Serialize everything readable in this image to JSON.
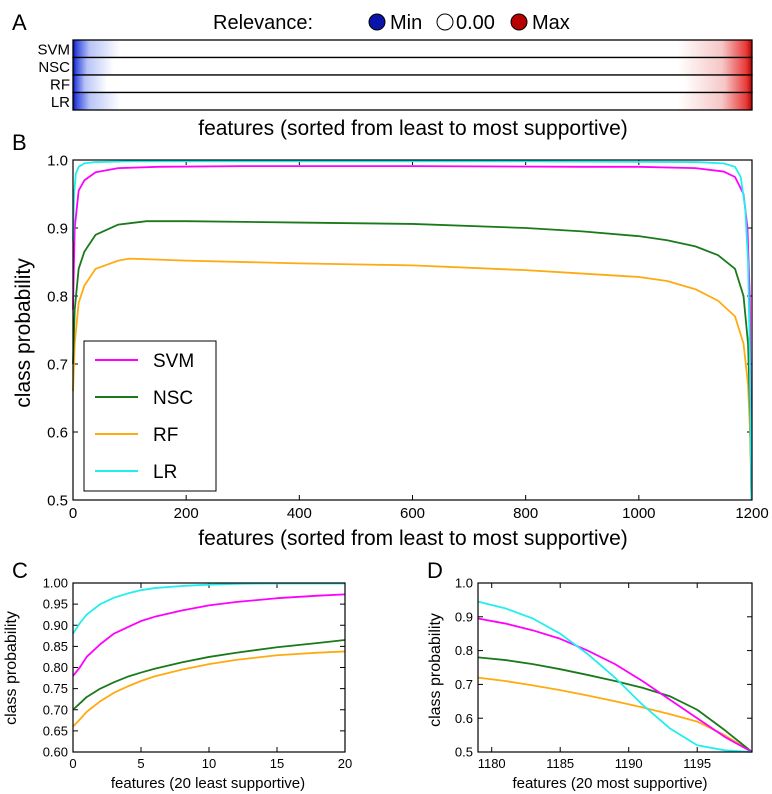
{
  "panel_labels": {
    "a": "A",
    "b": "B",
    "c": "C",
    "d": "D"
  },
  "legend_top": {
    "title": "Relevance:",
    "items": [
      {
        "label": "Min",
        "color": "#0a14a8"
      },
      {
        "label": "0.00",
        "color": "#ffffff"
      },
      {
        "label": "Max",
        "color": "#b80000"
      }
    ]
  },
  "colors": {
    "SVM": "#ff00ff",
    "NSC": "#1a7a1a",
    "RF": "#ffaa11",
    "LR": "#22eeee"
  },
  "chart_data": [
    {
      "id": "A",
      "type": "heatmap",
      "rows": [
        "SVM",
        "NSC",
        "RF",
        "LR"
      ],
      "xlabel": "features (sorted from least to most supportive)",
      "color_scale": {
        "min_label": "Min",
        "mid_label": "0.00",
        "max_label": "Max",
        "min_color": "#0a14a8",
        "mid_color": "#ffffff",
        "max_color": "#b80000"
      },
      "description_values": {
        "blue_extent_fraction": [
          0.07,
          0.06,
          0.05,
          0.07
        ],
        "red_extent_fraction": [
          0.11,
          0.11,
          0.1,
          0.11
        ]
      }
    },
    {
      "id": "B",
      "type": "line",
      "xlabel": "features (sorted from least to most supportive)",
      "ylabel": "class probability",
      "xlim": [
        0,
        1200
      ],
      "ylim": [
        0.5,
        1.0
      ],
      "xticks": [
        "0",
        "200",
        "400",
        "600",
        "800",
        "1000",
        "1200"
      ],
      "yticks": [
        "0.5",
        "0.6",
        "0.7",
        "0.8",
        "0.9",
        "1.0"
      ],
      "legend_position": "lower-left",
      "series": [
        {
          "name": "SVM",
          "x": [
            0,
            3,
            10,
            20,
            40,
            80,
            150,
            300,
            600,
            900,
            1000,
            1100,
            1150,
            1170,
            1185,
            1192,
            1196,
            1199
          ],
          "y": [
            0.78,
            0.9,
            0.955,
            0.97,
            0.982,
            0.988,
            0.99,
            0.991,
            0.991,
            0.99,
            0.99,
            0.988,
            0.983,
            0.975,
            0.95,
            0.9,
            0.8,
            0.5
          ]
        },
        {
          "name": "NSC",
          "x": [
            0,
            3,
            10,
            20,
            40,
            80,
            130,
            200,
            400,
            600,
            800,
            900,
            1000,
            1050,
            1100,
            1140,
            1170,
            1185,
            1193,
            1197,
            1199
          ],
          "y": [
            0.7,
            0.78,
            0.84,
            0.865,
            0.89,
            0.905,
            0.91,
            0.91,
            0.908,
            0.906,
            0.9,
            0.895,
            0.888,
            0.882,
            0.873,
            0.86,
            0.84,
            0.8,
            0.73,
            0.62,
            0.5
          ]
        },
        {
          "name": "RF",
          "x": [
            0,
            3,
            10,
            20,
            40,
            80,
            100,
            200,
            400,
            600,
            800,
            900,
            1000,
            1050,
            1100,
            1140,
            1170,
            1185,
            1193,
            1197,
            1199
          ],
          "y": [
            0.66,
            0.73,
            0.79,
            0.815,
            0.84,
            0.852,
            0.855,
            0.852,
            0.848,
            0.845,
            0.838,
            0.833,
            0.828,
            0.822,
            0.81,
            0.793,
            0.77,
            0.73,
            0.67,
            0.59,
            0.5
          ]
        },
        {
          "name": "LR",
          "x": [
            0,
            2,
            5,
            10,
            20,
            40,
            100,
            400,
            800,
            1100,
            1150,
            1170,
            1180,
            1188,
            1193,
            1196,
            1199
          ],
          "y": [
            0.88,
            0.95,
            0.98,
            0.99,
            0.995,
            0.997,
            0.998,
            0.998,
            0.998,
            0.997,
            0.995,
            0.99,
            0.975,
            0.93,
            0.85,
            0.72,
            0.5
          ]
        }
      ]
    },
    {
      "id": "C",
      "type": "line",
      "xlabel": "features (20 least supportive)",
      "ylabel": "class probability",
      "xlim": [
        0,
        20
      ],
      "ylim": [
        0.6,
        1.0
      ],
      "xticks": [
        "0",
        "5",
        "10",
        "15",
        "20"
      ],
      "yticks": [
        "0.60",
        "0.65",
        "0.70",
        "0.75",
        "0.80",
        "0.85",
        "0.90",
        "0.95",
        "1.00"
      ],
      "series": [
        {
          "name": "SVM",
          "x": [
            0,
            0.5,
            1,
            2,
            3,
            4,
            5,
            6,
            8,
            10,
            12,
            15,
            18,
            20
          ],
          "y": [
            0.78,
            0.8,
            0.825,
            0.855,
            0.88,
            0.895,
            0.91,
            0.92,
            0.935,
            0.947,
            0.955,
            0.964,
            0.97,
            0.973
          ]
        },
        {
          "name": "NSC",
          "x": [
            0,
            0.5,
            1,
            2,
            3,
            4,
            5,
            6,
            8,
            10,
            12,
            15,
            18,
            20
          ],
          "y": [
            0.7,
            0.715,
            0.73,
            0.75,
            0.765,
            0.778,
            0.788,
            0.797,
            0.812,
            0.825,
            0.835,
            0.848,
            0.858,
            0.865
          ]
        },
        {
          "name": "RF",
          "x": [
            0,
            0.5,
            1,
            2,
            3,
            4,
            5,
            6,
            8,
            10,
            12,
            15,
            18,
            20
          ],
          "y": [
            0.66,
            0.677,
            0.695,
            0.72,
            0.74,
            0.755,
            0.768,
            0.779,
            0.795,
            0.808,
            0.818,
            0.829,
            0.835,
            0.838
          ]
        },
        {
          "name": "LR",
          "x": [
            0,
            0.5,
            1,
            2,
            3,
            4,
            5,
            6,
            8,
            10,
            12,
            15,
            18,
            20
          ],
          "y": [
            0.88,
            0.905,
            0.925,
            0.95,
            0.965,
            0.975,
            0.983,
            0.988,
            0.993,
            0.996,
            0.998,
            0.999,
            0.999,
            0.999
          ]
        }
      ]
    },
    {
      "id": "D",
      "type": "line",
      "xlabel": "features (20 most supportive)",
      "ylabel": "class probability",
      "xlim": [
        1179,
        1199
      ],
      "ylim": [
        0.5,
        1.0
      ],
      "xticks": [
        "1180",
        "1185",
        "1190",
        "1195"
      ],
      "yticks": [
        "0.5",
        "0.6",
        "0.7",
        "0.8",
        "0.9",
        "1.0"
      ],
      "series": [
        {
          "name": "SVM",
          "x": [
            1179,
            1181,
            1183,
            1185,
            1187,
            1189,
            1191,
            1193,
            1195,
            1197,
            1199
          ],
          "y": [
            0.895,
            0.88,
            0.86,
            0.835,
            0.8,
            0.76,
            0.71,
            0.655,
            0.6,
            0.545,
            0.5
          ]
        },
        {
          "name": "NSC",
          "x": [
            1179,
            1181,
            1183,
            1185,
            1187,
            1189,
            1191,
            1193,
            1195,
            1197,
            1199
          ],
          "y": [
            0.78,
            0.772,
            0.76,
            0.745,
            0.728,
            0.71,
            0.69,
            0.665,
            0.625,
            0.565,
            0.5
          ]
        },
        {
          "name": "RF",
          "x": [
            1179,
            1181,
            1183,
            1185,
            1187,
            1189,
            1191,
            1193,
            1195,
            1197,
            1199
          ],
          "y": [
            0.72,
            0.71,
            0.697,
            0.683,
            0.667,
            0.65,
            0.632,
            0.612,
            0.59,
            0.55,
            0.5
          ]
        },
        {
          "name": "LR",
          "x": [
            1179,
            1181,
            1183,
            1185,
            1187,
            1189,
            1191,
            1193,
            1195,
            1197,
            1199
          ],
          "y": [
            0.945,
            0.925,
            0.895,
            0.85,
            0.79,
            0.72,
            0.64,
            0.57,
            0.52,
            0.505,
            0.5
          ]
        }
      ]
    }
  ]
}
